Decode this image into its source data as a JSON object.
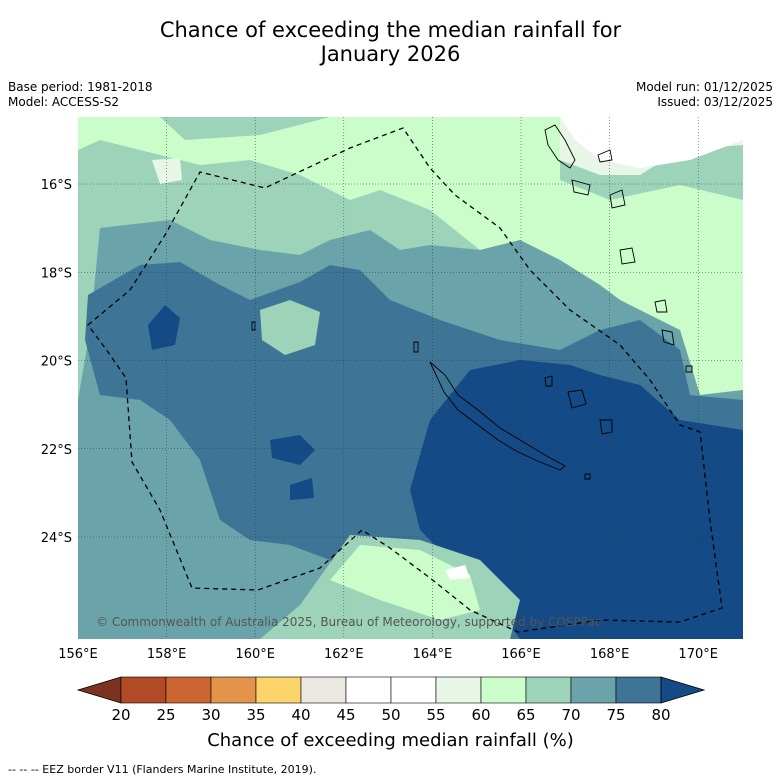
{
  "title_line1": "Chance of exceeding the median rainfall for",
  "title_line2": "January 2026",
  "base_period": "Base period: 1981-2018",
  "model": "Model: ACCESS-S2",
  "model_run": "Model run: 01/12/2025",
  "issued": "Issued: 03/12/2025",
  "copyright": "© Commonwealth of Australia 2025, Bureau of Meteorology, supported by COSPPac",
  "lat_labels": [
    "16°S",
    "18°S",
    "20°S",
    "22°S",
    "24°S"
  ],
  "lon_labels": [
    "156°E",
    "158°E",
    "160°E",
    "162°E",
    "164°E",
    "166°E",
    "168°E",
    "170°E"
  ],
  "colorbar": {
    "ticks": [
      "20",
      "25",
      "30",
      "35",
      "40",
      "45",
      "50",
      "55",
      "60",
      "65",
      "70",
      "75",
      "80"
    ],
    "colors": [
      "#7a3320",
      "#b34a26",
      "#cb6632",
      "#e3934a",
      "#fdd36c",
      "#ebe9e2",
      "#ffffff",
      "#ffffff",
      "#e7f6e6",
      "#cbfdcb",
      "#9dd3b9",
      "#6aa3a9",
      "#3e7597",
      "#144a85"
    ],
    "title": "Chance of exceeding median rainfall (%)"
  },
  "footnote": "-- -- -- EEZ border V11 (Flanders Marine Institute, 2019)."
}
